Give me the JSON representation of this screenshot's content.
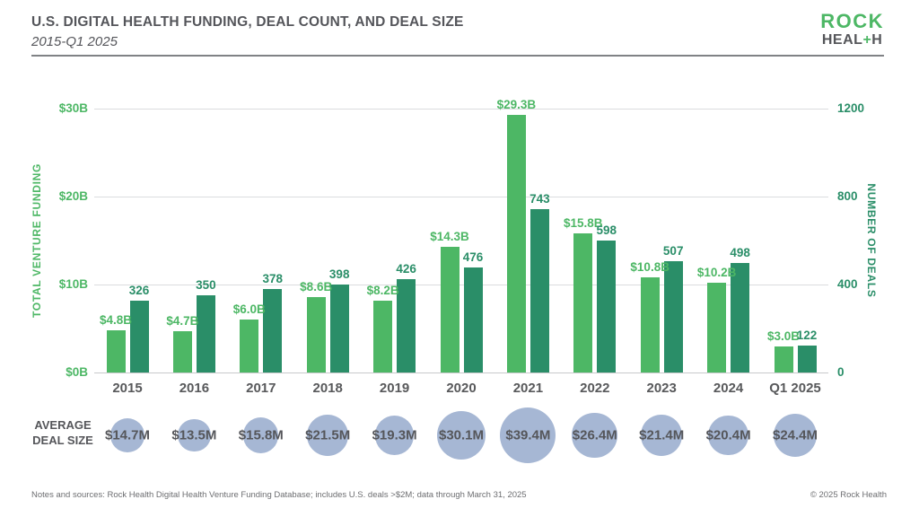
{
  "header": {
    "title": "U.S. DIGITAL HEALTH FUNDING, DEAL COUNT, AND DEAL SIZE",
    "subtitle": "2015-Q1 2025",
    "logo": {
      "line1": "ROCK",
      "line2_pre": "HEAL",
      "line2_plus": "+",
      "line2_post": "H"
    }
  },
  "chart_data": {
    "type": "bar",
    "title": "U.S. DIGITAL HEALTH FUNDING, DEAL COUNT, AND DEAL SIZE",
    "subtitle": "2015-Q1 2025",
    "categories": [
      "2015",
      "2016",
      "2017",
      "2018",
      "2019",
      "2020",
      "2021",
      "2022",
      "2023",
      "2024",
      "Q1 2025"
    ],
    "series": [
      {
        "name": "Total venture funding ($B)",
        "axis": "left",
        "color": "#4db765",
        "values": [
          4.8,
          4.7,
          6.0,
          8.6,
          8.2,
          14.3,
          29.3,
          15.8,
          10.8,
          10.2,
          3.0
        ],
        "labels": [
          "$4.8B",
          "$4.7B",
          "$6.0B",
          "$8.6B",
          "$8.2B",
          "$14.3B",
          "$29.3B",
          "$15.8B",
          "$10.8B",
          "$10.2B",
          "$3.0B"
        ]
      },
      {
        "name": "Number of deals",
        "axis": "right",
        "color": "#2a8e68",
        "values": [
          326,
          350,
          378,
          398,
          426,
          476,
          743,
          598,
          507,
          498,
          122
        ],
        "labels": [
          "326",
          "350",
          "378",
          "398",
          "426",
          "476",
          "743",
          "598",
          "507",
          "498",
          "122"
        ]
      }
    ],
    "left_axis": {
      "title": "TOTAL VENTURE FUNDING",
      "tick_labels": [
        "$0B",
        "$10B",
        "$20B",
        "$30B"
      ],
      "tick_values": [
        0,
        10,
        20,
        30
      ],
      "range": [
        0,
        30
      ]
    },
    "right_axis": {
      "title": "NUMBER OF DEALS",
      "tick_labels": [
        "0",
        "400",
        "800",
        "1200"
      ],
      "tick_values": [
        0,
        400,
        800,
        1200
      ],
      "range": [
        0,
        1200
      ]
    },
    "grid": "horizontal",
    "bubbles": {
      "label_line1": "AVERAGE",
      "label_line2": "DEAL SIZE",
      "name": "Average deal size ($M)",
      "color": "#a6b7d4",
      "values": [
        14.7,
        13.5,
        15.8,
        21.5,
        19.3,
        30.1,
        39.4,
        26.4,
        21.4,
        20.4,
        24.4
      ],
      "labels": [
        "$14.7M",
        "$13.5M",
        "$15.8M",
        "$21.5M",
        "$19.3M",
        "$30.1M",
        "$39.4M",
        "$26.4M",
        "$21.4M",
        "$20.4M",
        "$24.4M"
      ]
    }
  },
  "footer": {
    "notes": "Notes and sources: Rock Health Digital Health Venture Funding Database; includes U.S. deals >$2M; data through March 31, 2025",
    "copyright": "© 2025 Rock Health"
  }
}
